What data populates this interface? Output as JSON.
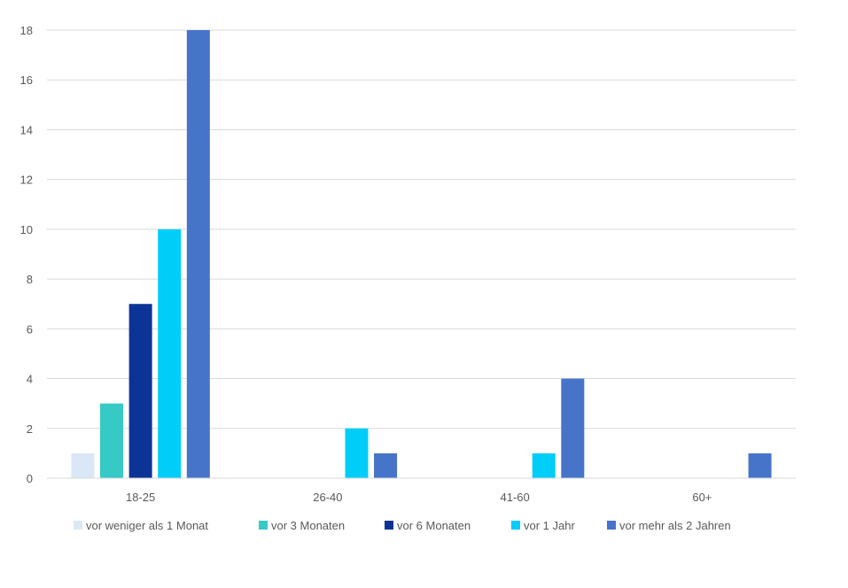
{
  "chart_data": {
    "type": "bar",
    "title": "",
    "xlabel": "",
    "ylabel": "",
    "ylim": [
      0,
      18
    ],
    "yticks": [
      0,
      2,
      4,
      6,
      8,
      10,
      12,
      14,
      16,
      18
    ],
    "grid": true,
    "legend_position": "bottom",
    "categories": [
      "18-25",
      "26-40",
      "41-60",
      "60+"
    ],
    "series": [
      {
        "name": "vor weniger als 1 Monat",
        "color": "#dae7f6",
        "values": [
          1,
          0,
          0,
          0
        ]
      },
      {
        "name": "vor 3 Monaten",
        "color": "#36c9c6",
        "values": [
          3,
          0,
          0,
          0
        ]
      },
      {
        "name": "vor 6 Monaten",
        "color": "#0b3496",
        "values": [
          7,
          0,
          0,
          0
        ]
      },
      {
        "name": "vor 1 Jahr",
        "color": "#00cdf8",
        "values": [
          10,
          2,
          1,
          0
        ]
      },
      {
        "name": "vor mehr als 2 Jahren",
        "color": "#4674c9",
        "values": [
          18,
          1,
          4,
          1
        ]
      }
    ]
  }
}
